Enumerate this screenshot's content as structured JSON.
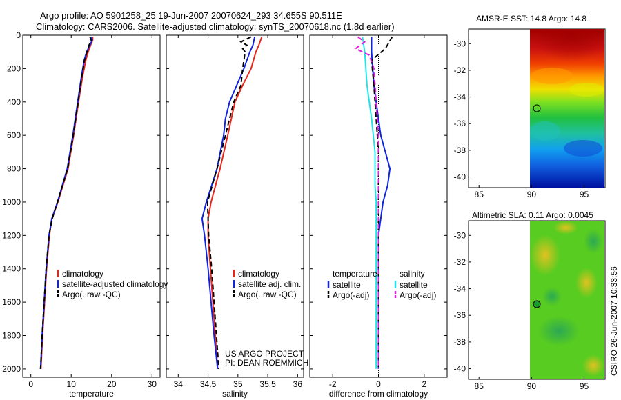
{
  "header": {
    "title_line1": "Argo profile: AO 5901258_25 19-Jun-2007 20070624_293 34.655S 90.511E",
    "title_line2": "Climatology: CARS2006. Satellite-adjusted climatology: synTS_20070618.nc (1.8d earlier)"
  },
  "footer": {
    "project_line1": "US ARGO PROJECT",
    "project_line2": "PI: DEAN ROEMMICH",
    "side_stamp": "CSIRO 26-Jun-2007 10:33:56"
  },
  "colors": {
    "red": "#e8231a",
    "blue": "#1024e0",
    "black": "#000000",
    "cyan": "#1ee4ea",
    "magenta": "#e020e0"
  },
  "chart_data": [
    {
      "type": "line",
      "panel": "temperature",
      "xlabel": "temperature",
      "xlim": [
        -2,
        32
      ],
      "ylim": [
        2050,
        0
      ],
      "xticks": [
        0,
        10,
        20,
        30
      ],
      "yticks": [
        0,
        200,
        400,
        600,
        800,
        1000,
        1200,
        1400,
        1600,
        1800,
        2000
      ],
      "legend": [
        "climatology",
        "satellite-adjusted climatology",
        "Argo(..raw -QC)"
      ],
      "series": [
        {
          "name": "climatology",
          "color": "red",
          "depth": [
            10,
            30,
            60,
            100,
            150,
            250,
            400,
            600,
            800,
            1000,
            1100,
            1200,
            1400,
            1600,
            1800,
            2000
          ],
          "values": [
            15.3,
            15.3,
            14.8,
            14.2,
            13.6,
            12.8,
            11.8,
            10.6,
            9.2,
            6.7,
            5.2,
            4.6,
            3.9,
            3.4,
            2.9,
            2.5
          ]
        },
        {
          "name": "satellite-adjusted climatology",
          "color": "blue",
          "depth": [
            10,
            30,
            60,
            100,
            150,
            250,
            400,
            600,
            800,
            1000,
            1100,
            1200,
            1400,
            1600,
            1800,
            2000
          ],
          "values": [
            15.0,
            15.2,
            14.6,
            13.8,
            13.2,
            12.5,
            11.6,
            10.4,
            9.0,
            6.6,
            5.2,
            4.5,
            3.8,
            3.3,
            2.8,
            2.4
          ]
        },
        {
          "name": "Argo(..raw -QC)",
          "color": "black",
          "depth": [
            10,
            30,
            60,
            100,
            150,
            250,
            400,
            600,
            800,
            1000,
            1100,
            1200,
            1400,
            1600,
            1800,
            2000
          ],
          "values": [
            14.6,
            15.0,
            14.4,
            13.9,
            13.3,
            12.6,
            11.7,
            10.5,
            9.1,
            6.6,
            5.3,
            4.5,
            3.8,
            3.3,
            2.8,
            2.4
          ]
        }
      ]
    },
    {
      "type": "line",
      "panel": "salinity",
      "xlabel": "salinity",
      "xlim": [
        33.8,
        36.1
      ],
      "ylim": [
        2050,
        0
      ],
      "xticks": [
        34,
        34.5,
        35,
        35.5,
        36
      ],
      "legend": [
        "climatology",
        "satellite adj. clim.",
        "Argo(..raw -QC)"
      ],
      "series": [
        {
          "name": "climatology",
          "color": "red",
          "depth": [
            10,
            60,
            100,
            200,
            300,
            400,
            600,
            800,
            1000,
            1100,
            1200,
            1400,
            1600,
            1800,
            2000
          ],
          "values": [
            35.4,
            35.35,
            35.3,
            35.22,
            35.08,
            34.95,
            34.83,
            34.7,
            34.55,
            34.5,
            34.5,
            34.54,
            34.58,
            34.62,
            34.66
          ]
        },
        {
          "name": "satellite adj. clim.",
          "color": "blue",
          "depth": [
            10,
            60,
            100,
            200,
            300,
            400,
            500,
            600,
            800,
            1000,
            1100,
            1200,
            1400,
            1600,
            1800,
            2000
          ],
          "values": [
            35.28,
            35.25,
            35.2,
            35.1,
            34.98,
            34.86,
            34.79,
            34.76,
            34.65,
            34.47,
            34.4,
            34.44,
            34.5,
            34.55,
            34.6,
            34.66
          ]
        },
        {
          "name": "Argo(..raw -QC)",
          "color": "black",
          "depth": [
            10,
            40,
            60,
            80,
            100,
            150,
            200,
            300,
            400,
            600,
            800,
            1000,
            1100,
            1200,
            1400,
            1600,
            1800,
            2000
          ],
          "values": [
            35.22,
            35.05,
            35.15,
            35.08,
            35.12,
            35.1,
            35.08,
            35.05,
            34.93,
            34.79,
            34.65,
            34.49,
            34.5,
            34.51,
            34.56,
            34.6,
            34.64,
            34.68
          ]
        }
      ]
    },
    {
      "type": "line",
      "panel": "difference",
      "xlabel": "difference from climatology",
      "xlim": [
        -3.0,
        3.0
      ],
      "ylim": [
        2050,
        0
      ],
      "xticks": [
        -2,
        0,
        2
      ],
      "legend": [
        "temperature",
        "satellite",
        "Argo(-adj)",
        "salinity",
        "satellite",
        "Argo(-adj)"
      ],
      "series": [
        {
          "name": "temperature satellite",
          "color": "blue",
          "depth": [
            10,
            100,
            300,
            500,
            600,
            700,
            800,
            900,
            1000,
            1200,
            1400,
            1600,
            1800,
            2000
          ],
          "values": [
            -0.3,
            -0.3,
            -0.2,
            0.0,
            0.1,
            0.3,
            0.5,
            0.4,
            0.2,
            0.0,
            0.0,
            0.0,
            0.0,
            0.0
          ]
        },
        {
          "name": "temperature Argo(-adj)",
          "color": "black",
          "depth": [
            10,
            80,
            150,
            300,
            500,
            700,
            900,
            1000,
            1200,
            1400,
            1600,
            1800,
            2000
          ],
          "values": [
            0.6,
            0.3,
            -0.3,
            -0.2,
            -0.1,
            0.0,
            0.0,
            0.0,
            0.0,
            0.0,
            0.0,
            0.0,
            0.0
          ]
        },
        {
          "name": "salinity satellite",
          "color": "cyan",
          "depth": [
            10,
            100,
            300,
            500,
            700,
            900,
            1000,
            1200,
            1400,
            1600,
            1800,
            2000
          ],
          "values": [
            -0.7,
            -0.6,
            -0.5,
            -0.3,
            -0.15,
            -0.15,
            -0.1,
            -0.1,
            -0.1,
            -0.1,
            -0.1,
            -0.1
          ]
        },
        {
          "name": "salinity Argo(-adj)",
          "color": "magenta",
          "depth": [
            10,
            40,
            80,
            120,
            200,
            400,
            600,
            800,
            1000,
            1200,
            1400,
            1600,
            1800,
            2000
          ],
          "values": [
            -0.9,
            -0.6,
            -1.0,
            -0.4,
            -0.2,
            -0.1,
            0.0,
            0.0,
            0.0,
            0.0,
            0.0,
            0.0,
            0.0,
            0.0
          ]
        }
      ]
    },
    {
      "type": "heatmap",
      "panel": "AMSR-E SST map",
      "title": "AMSR-E SST: 14.8 Argo: 14.8",
      "xlim": [
        84,
        97
      ],
      "ylim": [
        -40.8,
        -28.9
      ],
      "xticks": [
        85,
        90,
        95
      ],
      "yticks": [
        -30,
        -32,
        -34,
        -36,
        -38,
        -40
      ],
      "data_extent_lon": [
        90,
        97
      ],
      "argo_position": {
        "lon": 90.511,
        "lat": -34.655
      },
      "colormap": "jet"
    },
    {
      "type": "heatmap",
      "panel": "Altimetric SLA map",
      "title": "Altimetric SLA: 0.11 Argo: 0.0045",
      "xlim": [
        84,
        97
      ],
      "ylim": [
        -40.8,
        -28.9
      ],
      "xticks": [
        85,
        90,
        95
      ],
      "yticks": [
        -30,
        -32,
        -34,
        -36,
        -38,
        -40
      ],
      "data_extent_lon": [
        90,
        97
      ],
      "argo_position": {
        "lon": 90.511,
        "lat": -34.655
      },
      "colormap": "jet"
    }
  ]
}
